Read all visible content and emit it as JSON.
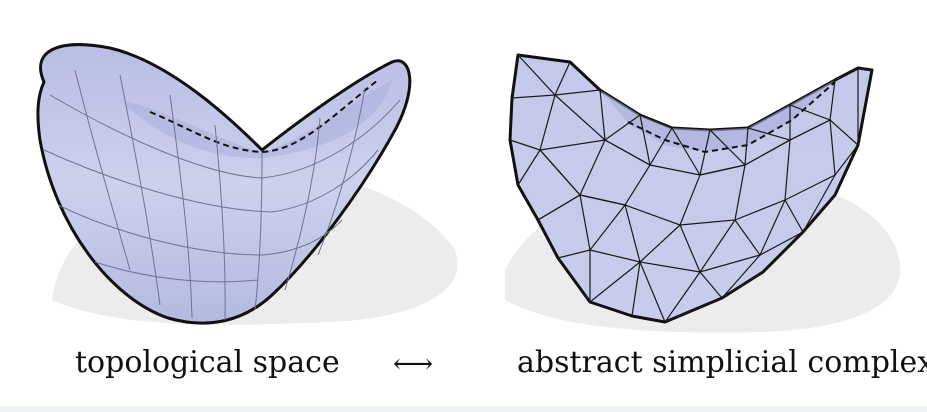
{
  "captions": {
    "left": "topological space",
    "arrow": "⟷",
    "right": "abstract simplicial complex"
  },
  "colors": {
    "surface_fill": "#c9cdeb",
    "surface_shade": "#a9aedb",
    "outline": "#111111",
    "shadow": "#ececec",
    "grid_line": "#6f7494"
  },
  "icons": {
    "arrow": "double-headed-arrow-icon"
  }
}
